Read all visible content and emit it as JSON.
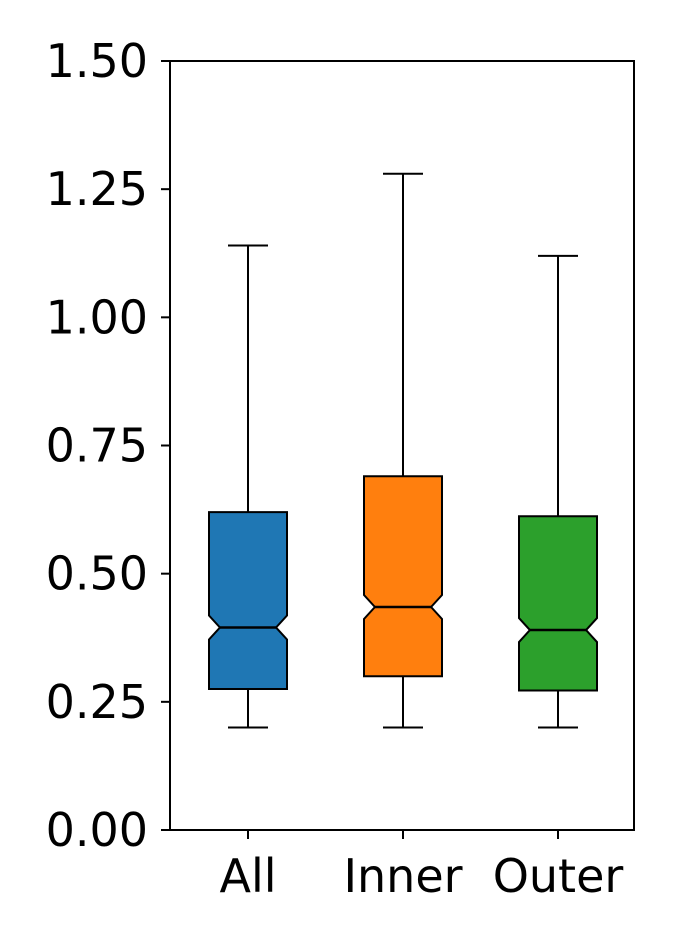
{
  "chart_data": {
    "type": "boxplot",
    "notched": true,
    "title": "",
    "xlabel": "",
    "ylabel": "",
    "ylim": [
      0,
      1.5
    ],
    "yticks": [
      0.0,
      0.25,
      0.5,
      0.75,
      1.0,
      1.25,
      1.5
    ],
    "ytick_labels": [
      "0.00",
      "0.25",
      "0.50",
      "0.75",
      "1.00",
      "1.25",
      "1.50"
    ],
    "categories": [
      "All",
      "Inner",
      "Outer"
    ],
    "grid": false,
    "series": [
      {
        "category": "All",
        "color": "#1f77b4",
        "whisker_low": 0.2,
        "q1": 0.275,
        "median": 0.395,
        "q3": 0.62,
        "whisker_high": 1.14
      },
      {
        "category": "Inner",
        "color": "#ff7f0e",
        "whisker_low": 0.2,
        "q1": 0.3,
        "median": 0.435,
        "q3": 0.69,
        "whisker_high": 1.28
      },
      {
        "category": "Outer",
        "color": "#2ca02c",
        "whisker_low": 0.2,
        "q1": 0.272,
        "median": 0.39,
        "q3": 0.612,
        "whisker_high": 1.12
      }
    ]
  }
}
